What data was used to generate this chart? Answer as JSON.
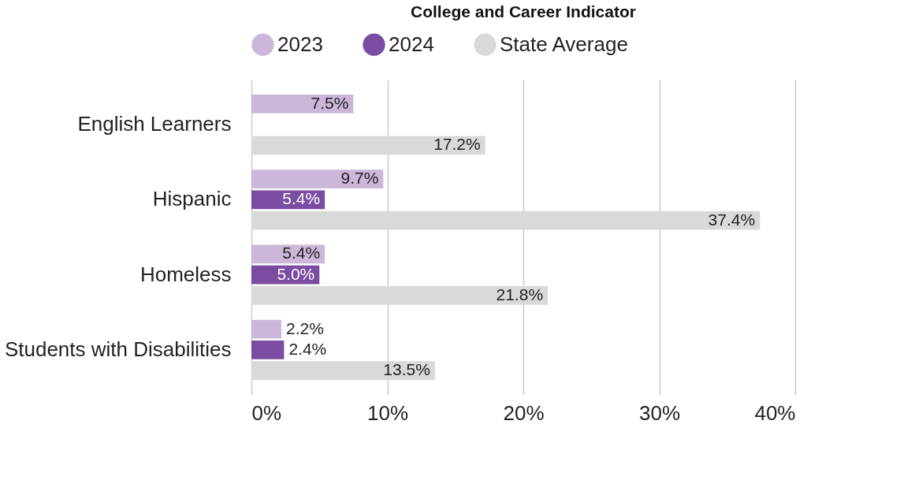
{
  "chart_data": {
    "type": "bar",
    "orientation": "horizontal",
    "title": "College and Career Indicator",
    "categories": [
      "English Learners",
      "Hispanic",
      "Homeless",
      "Students with Disabilities"
    ],
    "series": [
      {
        "name": "2023",
        "color": "#ccb6da",
        "values": [
          7.5,
          9.7,
          5.4,
          2.2
        ],
        "value_labels": [
          "7.5%",
          "9.7%",
          "5.4%",
          "2.2%"
        ]
      },
      {
        "name": "2024",
        "color": "#7a4ca2",
        "values": [
          null,
          5.4,
          5.0,
          2.4
        ],
        "value_labels": [
          null,
          "5.4%",
          "5.0%",
          "2.4%"
        ]
      },
      {
        "name": "State Average",
        "color": "#d9d9d9",
        "values": [
          17.2,
          37.4,
          21.8,
          13.5
        ],
        "value_labels": [
          "17.2%",
          "37.4%",
          "21.8%",
          "13.5%"
        ]
      }
    ],
    "xlim": [
      0,
      40
    ],
    "xticks": [
      {
        "value": 0,
        "label": "0%"
      },
      {
        "value": 10,
        "label": "10%"
      },
      {
        "value": 20,
        "label": "20%"
      },
      {
        "value": 30,
        "label": "30%"
      },
      {
        "value": 40,
        "label": "40%"
      }
    ],
    "grid": "x",
    "legend": "top"
  }
}
